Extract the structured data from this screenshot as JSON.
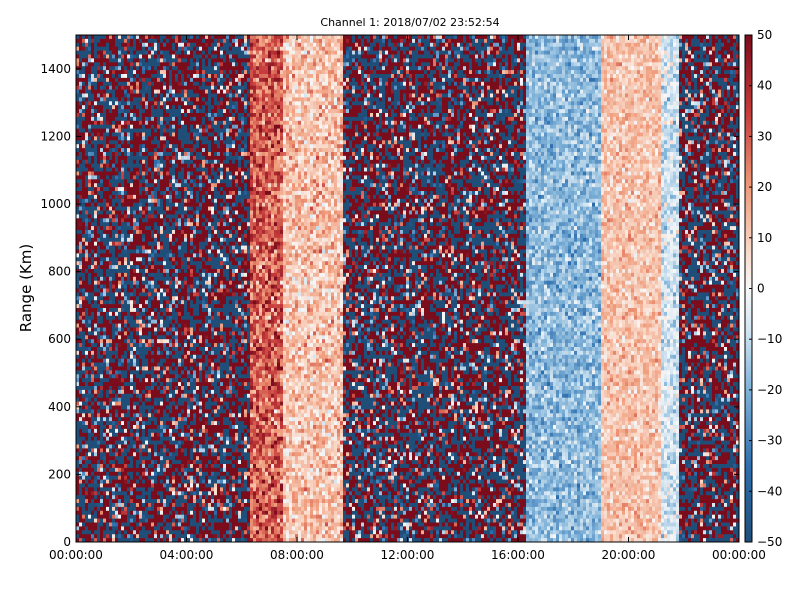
{
  "chart_data": {
    "type": "heatmap",
    "title": "Channel 1: 2018/07/02 23:52:54",
    "xlabel": "",
    "ylabel": "Range (Km)",
    "x_ticks": [
      "00:00:00",
      "04:00:00",
      "08:00:00",
      "12:00:00",
      "16:00:00",
      "20:00:00",
      "00:00:00"
    ],
    "x_range": [
      "00:00:00",
      "24:00:00"
    ],
    "y_ticks": [
      0,
      200,
      400,
      600,
      800,
      1000,
      1200,
      1400
    ],
    "ylim": [
      0,
      1500
    ],
    "colorbar": {
      "colormap": "RdBu_r",
      "range": [
        -50,
        50
      ],
      "ticks": [
        50,
        40,
        30,
        20,
        10,
        0,
        -10,
        -20,
        -30,
        -40,
        -50
      ],
      "colors": {
        "min": "#1f4e79",
        "mid": "#f7f7f7",
        "max": "#7b0c1c"
      }
    },
    "grid": false,
    "regions": [
      {
        "hours": [
          0,
          6.3
        ],
        "description_value": "noise",
        "mean": 0,
        "spread": 60
      },
      {
        "hours": [
          6.3,
          7.5
        ],
        "mean": 30,
        "spread": 18
      },
      {
        "hours": [
          7.5,
          9.7
        ],
        "mean": 12,
        "spread": 14
      },
      {
        "hours": [
          9.7,
          16.3
        ],
        "mean": 0,
        "spread": 45
      },
      {
        "hours": [
          16.3,
          19.0
        ],
        "mean": -18,
        "spread": 12
      },
      {
        "hours": [
          19.0,
          21.2
        ],
        "mean": 12,
        "spread": 10
      },
      {
        "hours": [
          21.2,
          21.8
        ],
        "mean": -8,
        "spread": 12
      },
      {
        "hours": [
          21.8,
          24
        ],
        "mean": 0,
        "spread": 65
      }
    ]
  }
}
